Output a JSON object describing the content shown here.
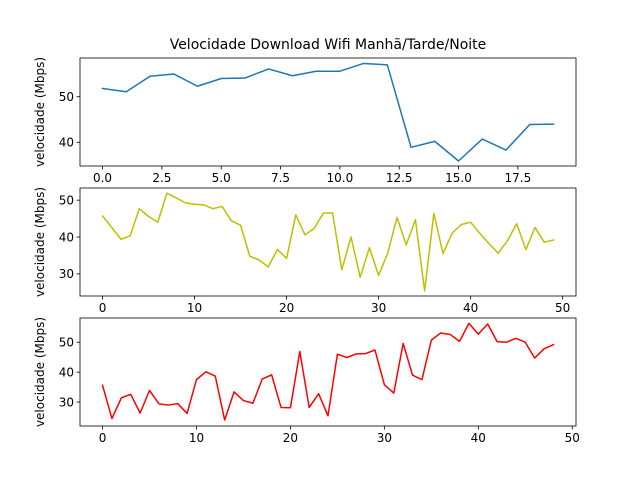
{
  "chart_data": [
    {
      "type": "line",
      "title": "Velocidade Download Wifi Manhã/Tarde/Noite",
      "xlabel": "",
      "ylabel": "velocidade (Mbps)",
      "color": "#1f77b4",
      "xlim": [
        -0.95,
        19.95
      ],
      "ylim": [
        34.8,
        58.5
      ],
      "xticks": [
        0,
        2.5,
        5,
        7.5,
        10,
        12.5,
        15,
        17.5
      ],
      "xtick_labels": [
        "0.0",
        "2.5",
        "5.0",
        "7.5",
        "10.0",
        "12.5",
        "15.0",
        "17.5"
      ],
      "yticks": [
        40,
        50
      ],
      "ytick_labels": [
        "40",
        "50"
      ],
      "series": [
        {
          "x": [
            0,
            1,
            2,
            3,
            4,
            5,
            6,
            7,
            8,
            9,
            10,
            11,
            12,
            13,
            14,
            15,
            16,
            17,
            18,
            19
          ],
          "values": [
            51.8,
            51.1,
            54.5,
            55.0,
            52.3,
            54.0,
            54.1,
            56.1,
            54.6,
            55.6,
            55.6,
            57.3,
            57.0,
            38.9,
            40.2,
            35.9,
            40.7,
            38.3,
            43.9,
            44.0
          ]
        }
      ]
    },
    {
      "type": "line",
      "title": "",
      "xlabel": "",
      "ylabel": "velocidade (Mbps)",
      "color": "#bfbf00",
      "xlim": [
        -2.45,
        51.45
      ],
      "ylim": [
        24.0,
        53.3
      ],
      "xticks": [
        0,
        10,
        20,
        30,
        40,
        50
      ],
      "xtick_labels": [
        "0",
        "10",
        "20",
        "30",
        "40",
        "50"
      ],
      "yticks": [
        30,
        40,
        50
      ],
      "ytick_labels": [
        "30",
        "40",
        "50"
      ],
      "series": [
        {
          "x": [
            0,
            1,
            2,
            3,
            4,
            5,
            6,
            7,
            8,
            9,
            10,
            11,
            12,
            13,
            14,
            15,
            16,
            17,
            18,
            19,
            20,
            21,
            22,
            23,
            24,
            25,
            26,
            27,
            28,
            29,
            30,
            31,
            32,
            33,
            34,
            35,
            36,
            37,
            38,
            39,
            40,
            41,
            42,
            43,
            44,
            45,
            46,
            47,
            48,
            49
          ],
          "values": [
            45.7,
            42.6,
            39.4,
            40.3,
            47.7,
            45.6,
            44.0,
            51.9,
            50.6,
            49.3,
            48.9,
            48.7,
            47.7,
            48.3,
            44.4,
            43.2,
            34.8,
            33.8,
            31.9,
            36.6,
            34.2,
            46.0,
            40.6,
            42.3,
            46.5,
            46.5,
            31.1,
            40.0,
            29.1,
            37.1,
            29.6,
            35.7,
            45.3,
            37.9,
            44.7,
            25.4,
            46.4,
            35.5,
            41.1,
            43.4,
            44.0,
            41.0,
            38.2,
            35.6,
            39.0,
            43.6,
            36.6,
            42.6,
            38.6,
            39.2
          ]
        }
      ]
    },
    {
      "type": "line",
      "title": "",
      "xlabel": "",
      "ylabel": "velocidade (Mbps)",
      "color": "#ff0000",
      "xlim": [
        -2.4,
        50.4
      ],
      "ylim": [
        22.0,
        58.1
      ],
      "xticks": [
        0,
        10,
        20,
        30,
        40,
        50
      ],
      "xtick_labels": [
        "0",
        "10",
        "20",
        "30",
        "40",
        "50"
      ],
      "yticks": [
        30,
        40,
        50
      ],
      "ytick_labels": [
        "30",
        "40",
        "50"
      ],
      "series": [
        {
          "x": [
            0,
            1,
            2,
            3,
            4,
            5,
            6,
            7,
            8,
            9,
            10,
            11,
            12,
            13,
            14,
            15,
            16,
            17,
            18,
            19,
            20,
            21,
            22,
            23,
            24,
            25,
            26,
            27,
            28,
            29,
            30,
            31,
            32,
            33,
            34,
            35,
            36,
            37,
            38,
            39,
            40,
            41,
            42,
            43,
            44,
            45,
            46,
            47,
            48
          ],
          "values": [
            35.6,
            24.5,
            31.4,
            32.6,
            26.3,
            33.9,
            29.4,
            29.0,
            29.5,
            26.2,
            37.5,
            40.1,
            38.7,
            24.0,
            33.4,
            30.5,
            29.6,
            37.7,
            39.1,
            28.2,
            28.1,
            46.9,
            28.2,
            32.8,
            25.4,
            46.0,
            44.9,
            46.1,
            46.2,
            47.4,
            35.8,
            33.0,
            49.6,
            39.0,
            37.5,
            50.7,
            53.1,
            52.6,
            50.3,
            56.3,
            52.7,
            56.1,
            50.2,
            50.0,
            51.3,
            50.0,
            44.7,
            47.8,
            49.2
          ]
        }
      ]
    }
  ]
}
